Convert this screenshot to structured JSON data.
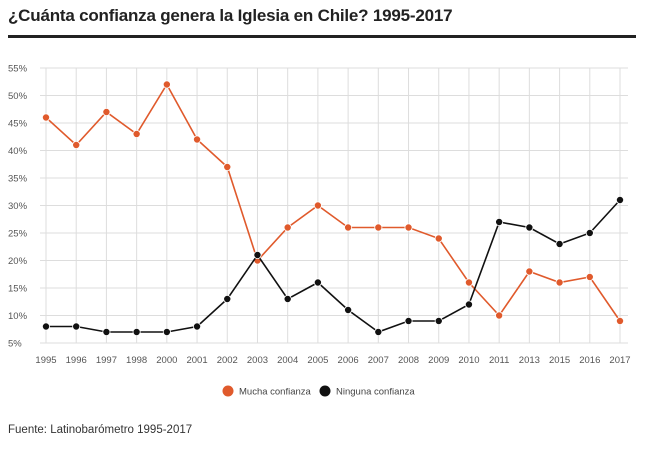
{
  "chart_data": {
    "type": "line",
    "title": "¿Cuánta confianza genera la Iglesia en Chile? 1995-2017",
    "x": [
      "1995",
      "1996",
      "1997",
      "1998",
      "2000",
      "2001",
      "2002",
      "2003",
      "2004",
      "2005",
      "2006",
      "2007",
      "2008",
      "2009",
      "2010",
      "2011",
      "2013",
      "2015",
      "2016",
      "2017"
    ],
    "y_ticks": [
      "5%",
      "10%",
      "15%",
      "20%",
      "25%",
      "30%",
      "35%",
      "40%",
      "45%",
      "50%",
      "55%"
    ],
    "ylim": [
      5,
      55
    ],
    "grid": true,
    "legend_position": "bottom-center",
    "series": [
      {
        "name": "Mucha confianza",
        "color": "#e05a2c",
        "values": [
          46,
          41,
          47,
          43,
          52,
          42,
          37,
          20,
          26,
          30,
          26,
          26,
          26,
          24,
          16,
          10,
          18,
          16,
          17,
          9
        ]
      },
      {
        "name": "Ninguna confianza",
        "color": "#111111",
        "values": [
          8,
          8,
          7,
          7,
          7,
          8,
          13,
          21,
          13,
          16,
          11,
          7,
          9,
          9,
          12,
          27,
          26,
          23,
          25,
          31
        ]
      }
    ]
  },
  "source": "Fuente:  Latinobarómetro 1995-2017"
}
